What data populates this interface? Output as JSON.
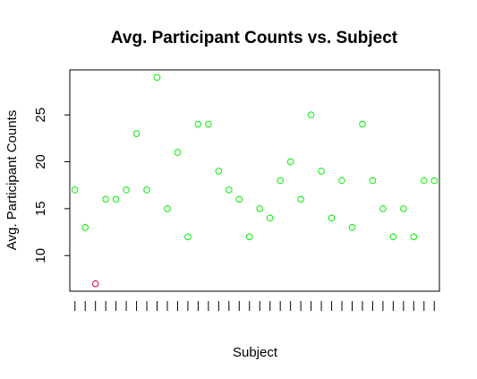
{
  "chart_data": {
    "type": "scatter",
    "title": "Avg. Participant Counts vs. Subject",
    "xlabel": "Subject",
    "ylabel": "Avg. Participant Counts",
    "x": [
      1,
      2,
      3,
      4,
      5,
      6,
      7,
      8,
      9,
      10,
      11,
      12,
      13,
      14,
      15,
      16,
      17,
      18,
      19,
      20,
      21,
      22,
      23,
      24,
      25,
      26,
      27,
      28,
      29,
      30,
      31,
      32,
      33,
      34,
      35,
      36
    ],
    "y": [
      17,
      13,
      7,
      16,
      16,
      17,
      23,
      17,
      29,
      15,
      21,
      12,
      24,
      24,
      19,
      17,
      16,
      12,
      15,
      14,
      18,
      20,
      16,
      25,
      19,
      14,
      18,
      13,
      24,
      18,
      15,
      12,
      15,
      12,
      18,
      18
    ],
    "colors": [
      "#00ee00",
      "#00ee00",
      "#cc0033",
      "#00ee00",
      "#00ee00",
      "#00ee00",
      "#00ee00",
      "#00ee00",
      "#00ee00",
      "#00ee00",
      "#00ee00",
      "#00ee00",
      "#00ee00",
      "#00ee00",
      "#00ee00",
      "#00ee00",
      "#00ee00",
      "#00ee00",
      "#00ee00",
      "#00ee00",
      "#00ee00",
      "#00ee00",
      "#00ee00",
      "#00ee00",
      "#00ee00",
      "#00ee00",
      "#00ee00",
      "#00ee00",
      "#00ee00",
      "#00ee00",
      "#00ee00",
      "#00ee00",
      "#00ee00",
      "#00ee00",
      "#00ee00",
      "#00ee00"
    ],
    "xlim": [
      0.5,
      36.5
    ],
    "ylim": [
      6.2,
      29.8
    ],
    "yticks": [
      10,
      15,
      20,
      25
    ],
    "grid": false,
    "legend": "none"
  }
}
